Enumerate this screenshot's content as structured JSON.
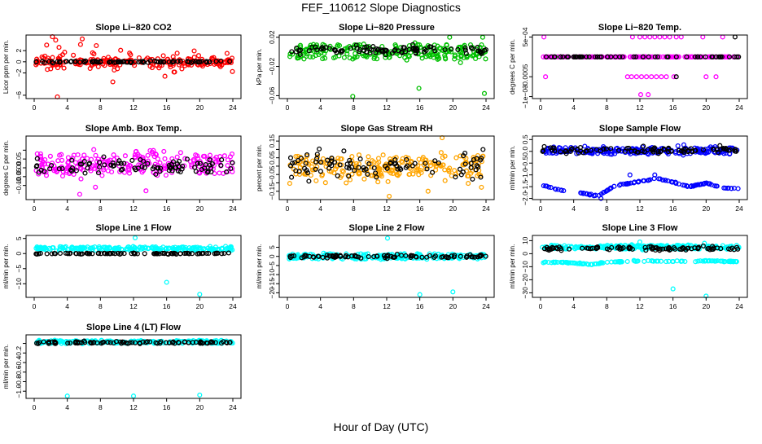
{
  "title": "FEF_110612  Slope Diagnostics",
  "xlabel": "Hour of Day (UTC)",
  "colors": {
    "overlay": "#000000",
    "frame": "#000000"
  },
  "chart_data": [
    {
      "type": "scatter",
      "title": "Slope Li−820 CO2",
      "ylabel": "Licor ppm per min.",
      "xlim": [
        0,
        24
      ],
      "xticks": [
        0,
        4,
        8,
        12,
        16,
        20,
        24
      ],
      "ylim": [
        -6.6,
        4.8
      ],
      "yticks": [
        2,
        0,
        -2,
        -6
      ],
      "ytick_labels": [
        "2",
        "0",
        "−2",
        "−6"
      ],
      "color": "#ff0000",
      "series": [
        {
          "role": "main",
          "band": [
            -3.5,
            2.4
          ],
          "core": [
            -0.6,
            0.5
          ],
          "center": 0,
          "outliers": [
            [
              2.2,
              4.5
            ],
            [
              2.6,
              3.9
            ],
            [
              5.8,
              4.1
            ],
            [
              5.6,
              3.1
            ],
            [
              1.5,
              3.0
            ],
            [
              3.0,
              2.6
            ],
            [
              2.8,
              -6.3
            ],
            [
              9.5,
              -3.6
            ],
            [
              15.8,
              -2.6
            ],
            [
              7.5,
              2.9
            ]
          ]
        },
        {
          "role": "overlay",
          "band": [
            -0.25,
            0.25
          ],
          "center": 0
        }
      ]
    },
    {
      "type": "scatter",
      "title": "Slope Li−820 Pressure",
      "ylabel": "kPa per min.",
      "xlim": [
        0,
        24
      ],
      "xticks": [
        0,
        4,
        8,
        12,
        16,
        20,
        24
      ],
      "ylim": [
        -0.064,
        0.023
      ],
      "yticks": [
        0.02,
        -0.02,
        -0.06
      ],
      "ytick_labels": [
        "0.02",
        "−0.02",
        "−0.06"
      ],
      "color": "#00c000",
      "series": [
        {
          "role": "main",
          "band": [
            -0.02,
            0.02
          ],
          "core": [
            -0.01,
            0.01
          ],
          "center": 0,
          "outliers": [
            [
              7.9,
              -0.061
            ],
            [
              15.9,
              -0.05
            ],
            [
              23.8,
              -0.057
            ],
            [
              23.6,
              0.02
            ],
            [
              19.6,
              0.02
            ]
          ]
        },
        {
          "role": "overlay",
          "band": [
            -0.008,
            0.012
          ],
          "center": 0.002
        }
      ]
    },
    {
      "type": "scatter",
      "title": "Slope Li−820 Temp.",
      "ylabel": "degrees C per min.",
      "xlim": [
        0,
        24
      ],
      "xticks": [
        0,
        4,
        8,
        12,
        16,
        20,
        24
      ],
      "ylim": [
        -0.00105,
        0.00055
      ],
      "yticks": [
        0.0005,
        -0.0005,
        -0.001
      ],
      "ytick_labels": [
        "5e−04",
        "−0.0005",
        "−1e−03"
      ],
      "color": "#ff00ff",
      "series": [
        {
          "role": "main",
          "levels": [
            0.0005,
            0,
            -0.0005,
            -0.00095
          ],
          "center": 0,
          "outliers": [
            [
              0.6,
              -0.0005
            ],
            [
              10.5,
              -0.0005
            ],
            [
              11.0,
              -0.0005
            ],
            [
              11.6,
              -0.0005
            ],
            [
              12.2,
              -0.0005
            ],
            [
              12.8,
              -0.0005
            ],
            [
              13.4,
              -0.0005
            ],
            [
              14.0,
              -0.0005
            ],
            [
              14.6,
              -0.0005
            ],
            [
              15.2,
              -0.0005
            ],
            [
              16.1,
              -0.0005
            ],
            [
              20.0,
              -0.0005
            ],
            [
              21.2,
              -0.0005
            ],
            [
              12.1,
              -0.00095
            ],
            [
              13.0,
              -0.00095
            ],
            [
              11.1,
              0.0005
            ],
            [
              12.0,
              0.0005
            ],
            [
              12.6,
              0.0005
            ],
            [
              13.2,
              0.0005
            ],
            [
              13.8,
              0.0005
            ],
            [
              14.4,
              0.0005
            ],
            [
              15.0,
              0.0005
            ],
            [
              15.6,
              0.0005
            ],
            [
              16.4,
              0.0005
            ],
            [
              17.0,
              0.0005
            ],
            [
              0.4,
              0.0005
            ],
            [
              19.6,
              0.0005
            ],
            [
              22.0,
              0.0005
            ]
          ]
        },
        {
          "role": "overlay",
          "levels": [
            0
          ],
          "center": 0,
          "outliers": [
            [
              16.4,
              -0.0005
            ],
            [
              23.5,
              0.0005
            ]
          ]
        }
      ]
    },
    {
      "type": "scatter",
      "title": "Slope Amb. Box Temp.",
      "ylabel": "degrees C per min.",
      "xlim": [
        0,
        24
      ],
      "xticks": [
        0,
        4,
        8,
        12,
        16,
        20,
        24
      ],
      "ylim": [
        -0.18,
        0.18
      ],
      "yticks": [
        0.1,
        0.05,
        0.0,
        -0.05,
        -0.1
      ],
      "ytick_labels": [
        "",
        "0.05",
        "0.00",
        "−0.05",
        "−0.10"
      ],
      "color": "#ff00ff",
      "series": [
        {
          "role": "main",
          "band": [
            -0.1,
            0.15
          ],
          "core": [
            -0.03,
            0.08
          ],
          "center": 0.02,
          "outliers": [
            [
              5.5,
              -0.15
            ],
            [
              13.5,
              -0.13
            ],
            [
              7.4,
              -0.11
            ]
          ]
        },
        {
          "role": "overlay",
          "band": [
            -0.06,
            0.1
          ],
          "center": 0.01
        }
      ]
    },
    {
      "type": "scatter",
      "title": "Slope Gas Stream RH",
      "ylabel": "percent per min.",
      "xlim": [
        0,
        24
      ],
      "xticks": [
        0,
        4,
        8,
        12,
        16,
        20,
        24
      ],
      "ylim": [
        -0.2,
        0.18
      ],
      "yticks": [
        0.15,
        0.1,
        0.05,
        0.0,
        -0.05,
        -0.1,
        -0.15
      ],
      "ytick_labels": [
        "0.15",
        "",
        "0.05",
        "",
        "−0.05",
        "",
        "−0.15"
      ],
      "color": "#ffa500",
      "series": [
        {
          "role": "main",
          "band": [
            -0.17,
            0.17
          ],
          "core": [
            -0.06,
            0.06
          ],
          "center": 0,
          "outliers": [
            [
              12.3,
              -0.18
            ],
            [
              17.0,
              -0.15
            ],
            [
              18.7,
              0.17
            ]
          ]
        },
        {
          "role": "overlay",
          "band": [
            -0.13,
            0.13
          ],
          "center": 0
        }
      ]
    },
    {
      "type": "scatter",
      "title": "Slope Sample Flow",
      "ylabel": "ml/min per min.",
      "xlim": [
        0,
        24
      ],
      "xticks": [
        0,
        4,
        8,
        12,
        16,
        20,
        24
      ],
      "ylim": [
        -2.05,
        0.65
      ],
      "yticks": [
        0.5,
        0.0,
        -0.5,
        -1.0,
        -1.5,
        -2.0
      ],
      "ytick_labels": [
        "0.5",
        "0.0",
        "−0.5",
        "−1.0",
        "−1.5",
        "−2.0"
      ],
      "color": "#0000ff",
      "series": [
        {
          "role": "main",
          "band": [
            -0.3,
            0.35
          ],
          "core": [
            -0.1,
            0.15
          ],
          "center": 0.05,
          "lower_band": [
            [
              0.3,
              -1.45
            ],
            [
              3.0,
              -1.7
            ],
            [
              5.5,
              -1.8
            ],
            [
              7.0,
              -1.9
            ],
            [
              9.0,
              -1.45
            ],
            [
              11.0,
              -1.35
            ],
            [
              14.0,
              -1.15
            ],
            [
              16.5,
              -1.35
            ],
            [
              18.0,
              -1.5
            ],
            [
              20.0,
              -1.35
            ],
            [
              22.0,
              -1.55
            ],
            [
              23.9,
              -1.6
            ]
          ],
          "outliers": [
            [
              7.3,
              -2.0
            ],
            [
              10.8,
              -1.0
            ],
            [
              13.8,
              -1.0
            ]
          ]
        },
        {
          "role": "overlay",
          "band": [
            -0.2,
            0.25
          ],
          "center": 0.05
        }
      ]
    },
    {
      "type": "scatter",
      "title": "Slope Line 1 Flow",
      "ylabel": "ml/min per min.",
      "xlim": [
        0,
        24
      ],
      "xticks": [
        0,
        4,
        8,
        12,
        16,
        20,
        24
      ],
      "ylim": [
        -14.5,
        6.0
      ],
      "yticks": [
        5,
        0,
        -5,
        -10
      ],
      "ytick_labels": [
        "5",
        "0",
        "−5",
        "−10"
      ],
      "color": "#00ffff",
      "series": [
        {
          "role": "main",
          "band": [
            0.6,
            2.8
          ],
          "core": [
            1.0,
            2.3
          ],
          "center": 1.7,
          "outliers": [
            [
              12.2,
              5.2
            ],
            [
              16.0,
              -9.5
            ],
            [
              20.0,
              -13.5
            ]
          ]
        },
        {
          "role": "overlay",
          "band": [
            -0.3,
            0.3
          ],
          "center": 0
        }
      ]
    },
    {
      "type": "scatter",
      "title": "Slope Line 2 Flow",
      "ylabel": "ml/min per min.",
      "xlim": [
        0,
        24
      ],
      "xticks": [
        0,
        4,
        8,
        12,
        16,
        20,
        24
      ],
      "ylim": [
        -22.5,
        11.5
      ],
      "yticks": [
        5,
        0,
        -5,
        -10,
        -15,
        -20
      ],
      "ytick_labels": [
        "5",
        "0",
        "−5",
        "−10",
        "−15",
        "−20"
      ],
      "color": "#00ffff",
      "series": [
        {
          "role": "main",
          "band": [
            -3.0,
            3.0
          ],
          "core": [
            -1.5,
            1.5
          ],
          "center": 0,
          "outliers": [
            [
              12.1,
              10.0
            ],
            [
              16.0,
              -21.0
            ],
            [
              20.0,
              -19.5
            ]
          ]
        },
        {
          "role": "overlay",
          "band": [
            -1.5,
            1.8
          ],
          "center": 0
        }
      ]
    },
    {
      "type": "scatter",
      "title": "Slope Line 3 Flow",
      "ylabel": "ml/min per min.",
      "xlim": [
        0,
        24
      ],
      "xticks": [
        0,
        4,
        8,
        12,
        16,
        20,
        24
      ],
      "ylim": [
        -33.5,
        14.0
      ],
      "yticks": [
        10,
        0,
        -10,
        -20,
        -30
      ],
      "ytick_labels": [
        "10",
        "0",
        "−10",
        "−20",
        "−30"
      ],
      "color": "#00ffff",
      "series": [
        {
          "role": "main",
          "band": [
            2.0,
            8.0
          ],
          "core": [
            3.5,
            6.5
          ],
          "center": 5,
          "lower_band": [
            [
              0.3,
              -6.5
            ],
            [
              4.0,
              -7.0
            ],
            [
              6.0,
              -8.5
            ],
            [
              8.0,
              -6.5
            ],
            [
              12.0,
              -5.5
            ],
            [
              16.0,
              -6.0
            ],
            [
              20.0,
              -5.5
            ],
            [
              23.9,
              -6.0
            ]
          ],
          "outliers": [
            [
              16.0,
              -27.0
            ],
            [
              20.0,
              -32.5
            ],
            [
              12.0,
              9.0
            ],
            [
              19.8,
              8.0
            ]
          ]
        },
        {
          "role": "overlay",
          "band": [
            1.5,
            6.5
          ],
          "center": 4
        }
      ]
    },
    {
      "type": "scatter",
      "title": "Slope Line 4 (LT) Flow",
      "ylabel": "ml/min per min.",
      "xlim": [
        0,
        24
      ],
      "xticks": [
        0,
        4,
        8,
        12,
        16,
        20,
        24
      ],
      "ylim": [
        -1.15,
        0.18
      ],
      "yticks": [
        0.0,
        -0.2,
        -0.4,
        -0.6,
        -0.8,
        -1.0
      ],
      "ytick_labels": [
        "",
        "−0.2",
        "−0.4",
        "−0.6",
        "−0.8",
        "−1.0"
      ],
      "color": "#00ffff",
      "series": [
        {
          "role": "main",
          "band": [
            -0.03,
            0.08
          ],
          "core": [
            0.0,
            0.06
          ],
          "center": 0.03,
          "outliers": [
            [
              4.0,
              -1.1
            ],
            [
              12.0,
              -1.1
            ],
            [
              20.0,
              -1.08
            ]
          ]
        },
        {
          "role": "overlay",
          "band": [
            -0.02,
            0.06
          ],
          "center": 0.02
        }
      ]
    }
  ]
}
